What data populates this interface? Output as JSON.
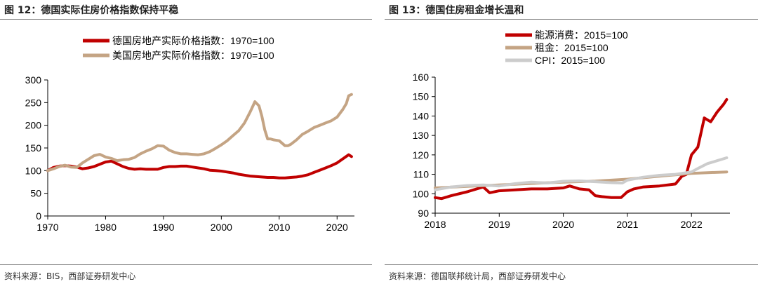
{
  "figures": [
    {
      "title": "图 12：德国实际住房价格指数保持平稳",
      "source": "资料来源：BIS，西部证券研发中心"
    },
    {
      "title": "图 13：德国住房租金增长温和",
      "source": "资料来源：德国联邦统计局，西部证券研发中心"
    }
  ],
  "chart_data": [
    {
      "type": "line",
      "title": "图 12：德国实际住房价格指数保持平稳",
      "xlabel": "",
      "ylabel": "",
      "xlim": [
        1970,
        2023
      ],
      "ylim": [
        0,
        300
      ],
      "xticks": [
        1970,
        1980,
        1990,
        2000,
        2010,
        2020
      ],
      "yticks": [
        0,
        50,
        100,
        150,
        200,
        250,
        300
      ],
      "legend_position": "top-left",
      "series": [
        {
          "name": "德国房地产实际价格指数：1970=100",
          "color": "#c00000",
          "x": [
            1970,
            1971,
            1972,
            1973,
            1974,
            1975,
            1976,
            1977,
            1978,
            1979,
            1980,
            1981,
            1982,
            1983,
            1984,
            1985,
            1986,
            1987,
            1988,
            1989,
            1990,
            1991,
            1992,
            1993,
            1994,
            1995,
            1996,
            1997,
            1998,
            1999,
            2000,
            2001,
            2002,
            2003,
            2004,
            2005,
            2006,
            2007,
            2008,
            2009,
            2010,
            2011,
            2012,
            2013,
            2014,
            2015,
            2016,
            2017,
            2018,
            2019,
            2020,
            2021,
            2022,
            2022.5
          ],
          "y": [
            100,
            107,
            110,
            111,
            110,
            108,
            104,
            106,
            109,
            114,
            119,
            121,
            115,
            109,
            105,
            103,
            104,
            103,
            103,
            103,
            107,
            109,
            109,
            110,
            110,
            108,
            106,
            104,
            101,
            100,
            99,
            97,
            95,
            92,
            90,
            88,
            87,
            86,
            85,
            85,
            84,
            84,
            85,
            86,
            88,
            91,
            96,
            101,
            106,
            111,
            117,
            126,
            135,
            131
          ]
        },
        {
          "name": "美国房地产实际价格指数：1970=100",
          "color": "#c4a484",
          "x": [
            1970,
            1971,
            1972,
            1973,
            1974,
            1975,
            1976,
            1977,
            1978,
            1979,
            1980,
            1981,
            1982,
            1983,
            1984,
            1985,
            1986,
            1987,
            1988,
            1989,
            1990,
            1991,
            1992,
            1993,
            1994,
            1995,
            1996,
            1997,
            1998,
            1999,
            2000,
            2001,
            2002,
            2003,
            2004,
            2005,
            2005.8,
            2006.5,
            2007,
            2007.5,
            2008,
            2008.5,
            2009,
            2010,
            2011,
            2011.5,
            2012,
            2013,
            2014,
            2015,
            2016,
            2017,
            2018,
            2019,
            2020,
            2021,
            2021.6,
            2022,
            2022.5
          ],
          "y": [
            100,
            104,
            109,
            112,
            108,
            107,
            117,
            125,
            133,
            136,
            130,
            127,
            122,
            124,
            125,
            129,
            137,
            143,
            148,
            155,
            154,
            145,
            140,
            137,
            137,
            136,
            135,
            137,
            142,
            149,
            157,
            166,
            177,
            188,
            205,
            230,
            252,
            243,
            220,
            190,
            170,
            170,
            168,
            166,
            155,
            155,
            158,
            168,
            180,
            187,
            195,
            200,
            205,
            210,
            218,
            235,
            248,
            265,
            268
          ]
        }
      ]
    },
    {
      "type": "line",
      "title": "图 13：德国住房租金增长温和",
      "xlabel": "",
      "ylabel": "",
      "xlim": [
        2018,
        2022.6
      ],
      "ylim": [
        90,
        160
      ],
      "xticks": [
        2018,
        2019,
        2020,
        2021,
        2022
      ],
      "yticks": [
        90,
        100,
        110,
        120,
        130,
        140,
        150,
        160
      ],
      "legend_position": "top-left",
      "series": [
        {
          "name": "能源消费：2015=100",
          "color": "#c00000",
          "x": [
            2018,
            2018.1,
            2018.25,
            2018.5,
            2018.75,
            2018.85,
            2019,
            2019.25,
            2019.5,
            2019.75,
            2020,
            2020.1,
            2020.25,
            2020.4,
            2020.5,
            2020.6,
            2020.75,
            2020.9,
            2021,
            2021.1,
            2021.25,
            2021.5,
            2021.75,
            2021.85,
            2021.92,
            2022,
            2022.1,
            2022.2,
            2022.3,
            2022.4,
            2022.5,
            2022.55
          ],
          "y": [
            98,
            97.5,
            99,
            101,
            103.5,
            100.5,
            101.5,
            102,
            102.5,
            102.5,
            103,
            104,
            102.5,
            102,
            99,
            98.5,
            98,
            98,
            101,
            102.5,
            103.5,
            104,
            105,
            109,
            110,
            120,
            124,
            139,
            137,
            142,
            146,
            148.5
          ]
        },
        {
          "name": "租金：2015=100",
          "color": "#c4a484",
          "x": [
            2018,
            2018.5,
            2019,
            2019.5,
            2020,
            2020.5,
            2021,
            2021.5,
            2022,
            2022.55
          ],
          "y": [
            103,
            103.8,
            104.5,
            105.3,
            106,
            106.5,
            107.5,
            109,
            110.5,
            111.2
          ]
        },
        {
          "name": "CPI：2015=100",
          "color": "#cccccc",
          "x": [
            2018,
            2018.25,
            2018.5,
            2018.75,
            2019,
            2019.25,
            2019.5,
            2019.75,
            2020,
            2020.25,
            2020.5,
            2020.75,
            2020.92,
            2021,
            2021.25,
            2021.5,
            2021.75,
            2022,
            2022.1,
            2022.25,
            2022.4,
            2022.55
          ],
          "y": [
            102,
            103.5,
            104.2,
            104.5,
            104,
            105.2,
            106,
            105.5,
            106.4,
            106.6,
            106.2,
            105.7,
            105.5,
            107,
            108.5,
            109.5,
            110,
            111.2,
            113,
            115.5,
            117,
            118.5
          ]
        }
      ]
    }
  ]
}
